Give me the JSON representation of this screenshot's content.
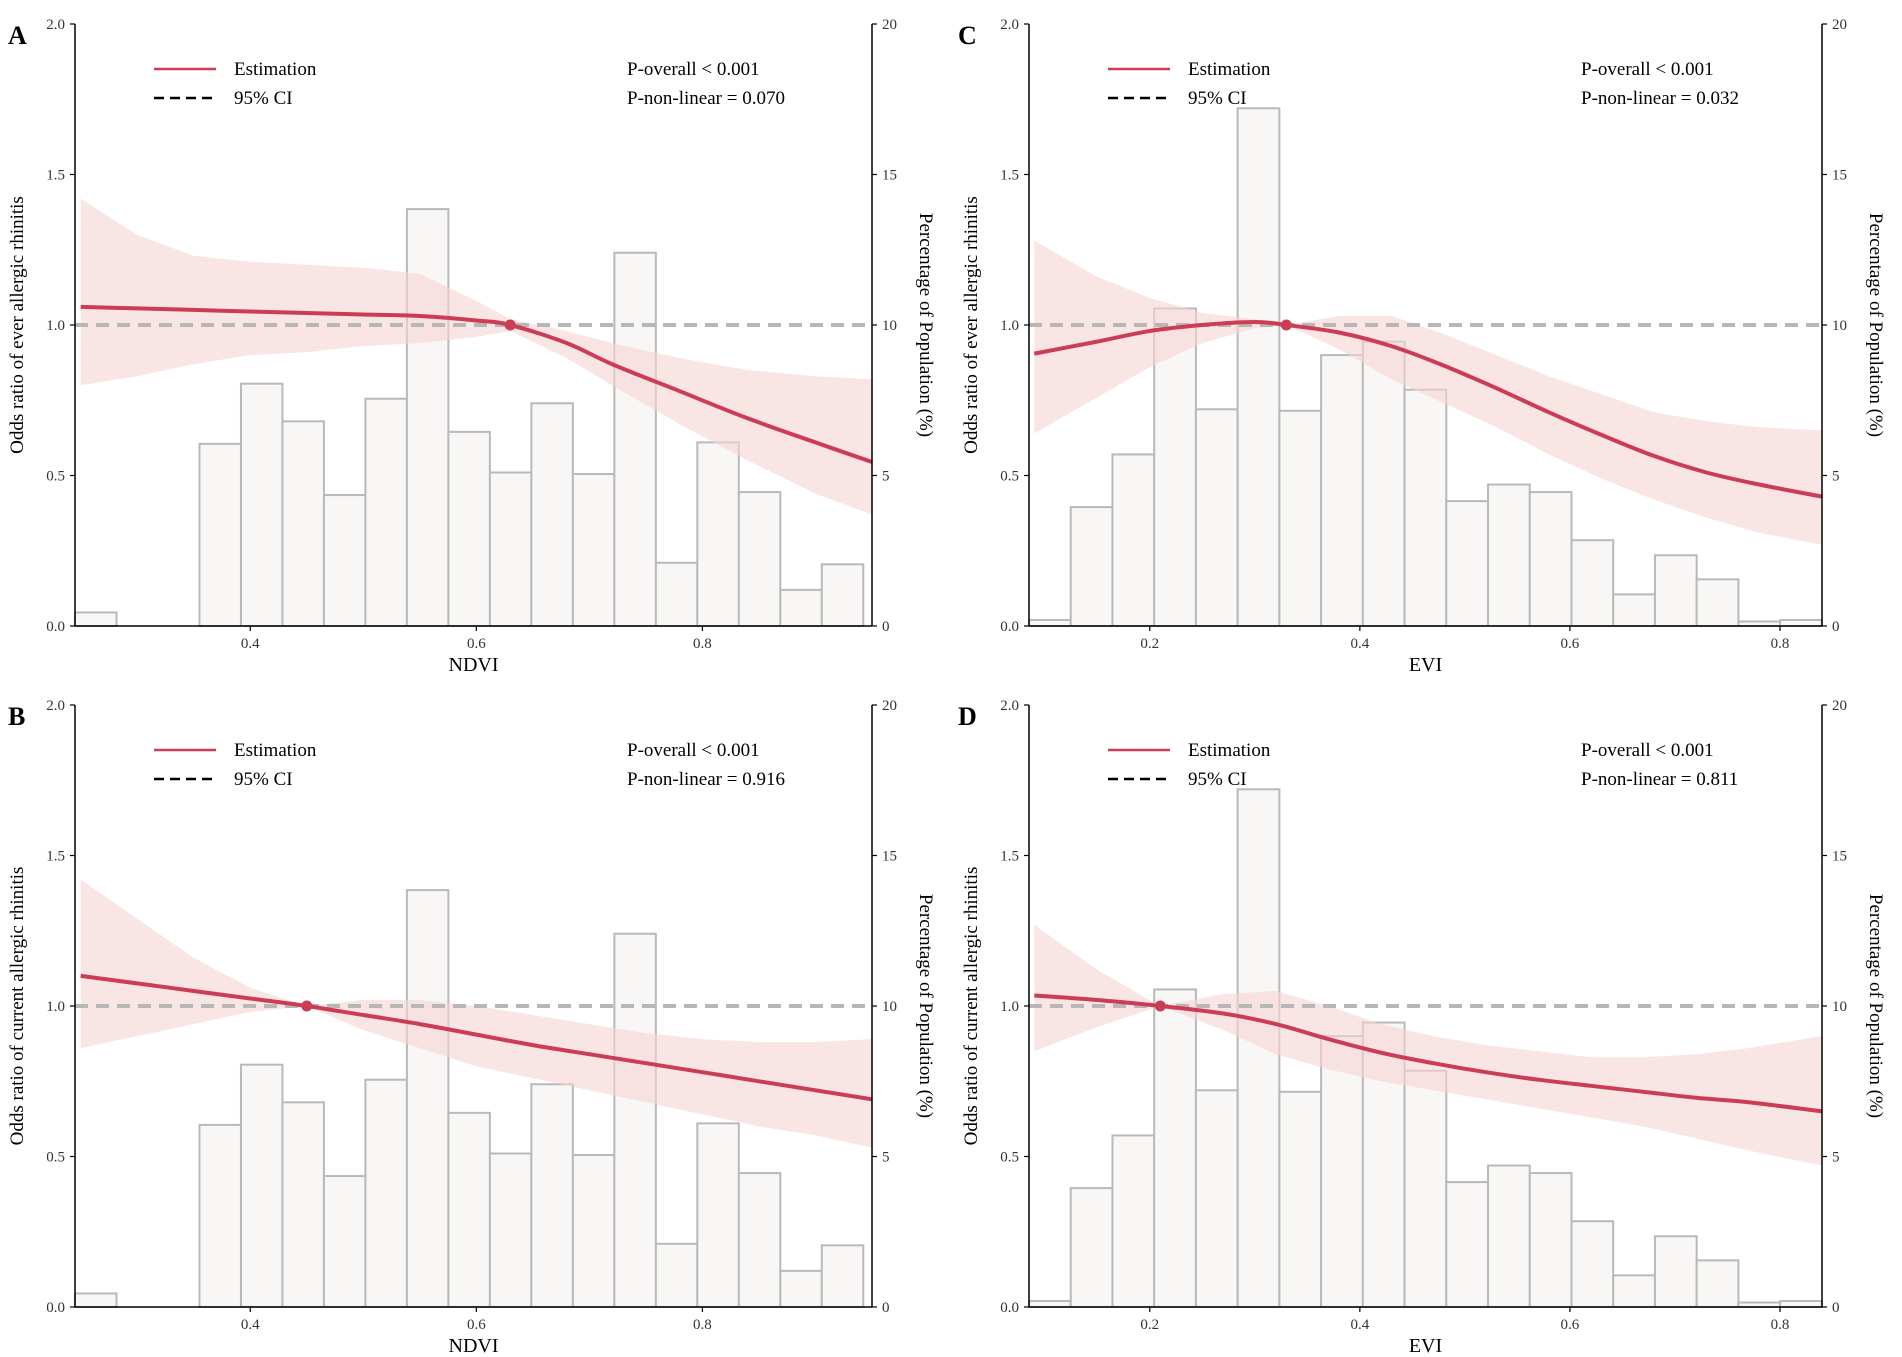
{
  "figure": {
    "legend": {
      "estimation": "Estimation",
      "ci": "95% CI"
    },
    "colors": {
      "curve": "#cc3d55",
      "ci_band": "#f6d3d3",
      "bar_fill": "#f8f7f5",
      "bar_stroke": "#b9b9b9",
      "reference": "#b7b7b7"
    },
    "right_axis_label": "Percentage of Population (%)"
  },
  "chart_data": [
    {
      "type": "line",
      "panel": "A",
      "xlabel": "NDVI",
      "ylabel": "Odds ratio of ever allergic rhinitis",
      "y2label": "Percentage of Population (%)",
      "xlim": [
        0.245,
        0.95
      ],
      "xticks": [
        0.4,
        0.6,
        0.8
      ],
      "xtick_labels": [
        "0.4",
        "0.6",
        "0.8"
      ],
      "ylim": [
        0,
        2
      ],
      "yticks": [
        "0.0",
        "0.5",
        "1.0",
        "1.5",
        "2.0"
      ],
      "y2lim": [
        0,
        20
      ],
      "y2ticks": [
        "0",
        "5",
        "10",
        "15",
        "20"
      ],
      "reference_y": 1.0,
      "p_overall": "P-overall < 0.001",
      "p_nonlinear": "P-non-linear = 0.070",
      "knot": [
        0.63,
        1.0
      ],
      "histogram": {
        "bin_start": 0.245,
        "bin_width": 0.0367,
        "percent": [
          0.45,
          0.0,
          0.0,
          6.05,
          8.05,
          6.8,
          4.35,
          7.55,
          13.85,
          6.45,
          5.1,
          7.4,
          5.05,
          12.4,
          2.1,
          6.1,
          4.45,
          1.2,
          2.05
        ]
      },
      "estimation": {
        "x": [
          0.25,
          0.3,
          0.35,
          0.4,
          0.45,
          0.5,
          0.55,
          0.6,
          0.63,
          0.68,
          0.72,
          0.78,
          0.84,
          0.9,
          0.95
        ],
        "y": [
          1.06,
          1.055,
          1.05,
          1.045,
          1.04,
          1.035,
          1.03,
          1.015,
          1.0,
          0.94,
          0.87,
          0.78,
          0.69,
          0.61,
          0.545
        ]
      },
      "ci_upper": {
        "x": [
          0.25,
          0.3,
          0.35,
          0.4,
          0.45,
          0.5,
          0.55,
          0.6,
          0.63,
          0.68,
          0.72,
          0.78,
          0.84,
          0.9,
          0.95
        ],
        "y": [
          1.42,
          1.3,
          1.23,
          1.21,
          1.2,
          1.19,
          1.17,
          1.08,
          1.02,
          0.98,
          0.94,
          0.89,
          0.85,
          0.83,
          0.82
        ]
      },
      "ci_lower": {
        "x": [
          0.25,
          0.3,
          0.35,
          0.4,
          0.45,
          0.5,
          0.55,
          0.6,
          0.63,
          0.68,
          0.72,
          0.78,
          0.84,
          0.9,
          0.95
        ],
        "y": [
          0.8,
          0.83,
          0.87,
          0.9,
          0.91,
          0.93,
          0.94,
          0.96,
          0.98,
          0.89,
          0.8,
          0.67,
          0.55,
          0.44,
          0.37
        ]
      }
    },
    {
      "type": "line",
      "panel": "B",
      "xlabel": "NDVI",
      "ylabel": "Odds ratio of current allergic rhinitis",
      "y2label": "Percentage of Population (%)",
      "xlim": [
        0.245,
        0.95
      ],
      "xticks": [
        0.4,
        0.6,
        0.8
      ],
      "xtick_labels": [
        "0.4",
        "0.6",
        "0.8"
      ],
      "ylim": [
        0,
        2
      ],
      "yticks": [
        "0.0",
        "0.5",
        "1.0",
        "1.5",
        "2.0"
      ],
      "y2lim": [
        0,
        20
      ],
      "y2ticks": [
        "0",
        "5",
        "10",
        "15",
        "20"
      ],
      "reference_y": 1.0,
      "p_overall": "P-overall < 0.001",
      "p_nonlinear": "P-non-linear = 0.916",
      "knot": [
        0.45,
        1.0
      ],
      "histogram": {
        "bin_start": 0.245,
        "bin_width": 0.0367,
        "percent": [
          0.45,
          0.0,
          0.0,
          6.05,
          8.05,
          6.8,
          4.35,
          7.55,
          13.85,
          6.45,
          5.1,
          7.4,
          5.05,
          12.4,
          2.1,
          6.1,
          4.45,
          1.2,
          2.05
        ]
      },
      "estimation": {
        "x": [
          0.25,
          0.3,
          0.35,
          0.4,
          0.45,
          0.5,
          0.55,
          0.6,
          0.65,
          0.7,
          0.75,
          0.8,
          0.85,
          0.9,
          0.95
        ],
        "y": [
          1.1,
          1.075,
          1.05,
          1.025,
          1.0,
          0.97,
          0.94,
          0.905,
          0.87,
          0.84,
          0.81,
          0.78,
          0.75,
          0.72,
          0.69
        ]
      },
      "ci_upper": {
        "x": [
          0.25,
          0.3,
          0.35,
          0.4,
          0.45,
          0.5,
          0.55,
          0.6,
          0.65,
          0.7,
          0.75,
          0.8,
          0.85,
          0.9,
          0.95
        ],
        "y": [
          1.42,
          1.29,
          1.16,
          1.06,
          1.0,
          1.02,
          1.02,
          1.0,
          0.97,
          0.94,
          0.91,
          0.89,
          0.88,
          0.88,
          0.89
        ]
      },
      "ci_lower": {
        "x": [
          0.25,
          0.3,
          0.35,
          0.4,
          0.45,
          0.5,
          0.55,
          0.6,
          0.65,
          0.7,
          0.75,
          0.8,
          0.85,
          0.9,
          0.95
        ],
        "y": [
          0.86,
          0.9,
          0.94,
          0.98,
          1.0,
          0.92,
          0.86,
          0.8,
          0.76,
          0.72,
          0.68,
          0.64,
          0.6,
          0.57,
          0.53
        ]
      }
    },
    {
      "type": "line",
      "panel": "C",
      "xlabel": "EVI",
      "ylabel": "Odds ratio of ever allergic rhinitis",
      "y2label": "Percentage of Population (%)",
      "xlim": [
        0.085,
        0.84
      ],
      "xticks": [
        0.2,
        0.4,
        0.6,
        0.8
      ],
      "xtick_labels": [
        "0.2",
        "0.4",
        "0.6",
        "0.8"
      ],
      "ylim": [
        0,
        2
      ],
      "yticks": [
        "0.0",
        "0.5",
        "1.0",
        "1.5",
        "2.0"
      ],
      "y2lim": [
        0,
        20
      ],
      "y2ticks": [
        "0",
        "5",
        "10",
        "15",
        "20"
      ],
      "reference_y": 1.0,
      "p_overall": "P-overall < 0.001",
      "p_nonlinear": "P-non-linear = 0.032",
      "knot": [
        0.33,
        1.0
      ],
      "histogram": {
        "bin_start": 0.085,
        "bin_width": 0.03973,
        "percent": [
          0.2,
          3.95,
          5.7,
          10.55,
          7.2,
          17.2,
          7.15,
          9.0,
          9.45,
          7.85,
          4.15,
          4.7,
          4.45,
          2.85,
          1.05,
          2.35,
          1.55,
          0.15,
          0.2
        ]
      },
      "estimation": {
        "x": [
          0.09,
          0.15,
          0.2,
          0.25,
          0.3,
          0.33,
          0.38,
          0.43,
          0.48,
          0.53,
          0.58,
          0.63,
          0.68,
          0.73,
          0.78,
          0.84
        ],
        "y": [
          0.905,
          0.945,
          0.98,
          1.0,
          1.01,
          1.0,
          0.975,
          0.93,
          0.865,
          0.79,
          0.71,
          0.635,
          0.565,
          0.51,
          0.47,
          0.43
        ]
      },
      "ci_upper": {
        "x": [
          0.09,
          0.15,
          0.2,
          0.25,
          0.3,
          0.33,
          0.38,
          0.43,
          0.48,
          0.53,
          0.58,
          0.63,
          0.68,
          0.73,
          0.78,
          0.84
        ],
        "y": [
          1.28,
          1.16,
          1.09,
          1.04,
          1.02,
          1.0,
          1.03,
          1.03,
          0.97,
          0.9,
          0.83,
          0.77,
          0.71,
          0.68,
          0.66,
          0.65
        ]
      },
      "ci_lower": {
        "x": [
          0.09,
          0.15,
          0.2,
          0.25,
          0.3,
          0.33,
          0.38,
          0.43,
          0.48,
          0.53,
          0.58,
          0.63,
          0.68,
          0.73,
          0.78,
          0.84
        ],
        "y": [
          0.64,
          0.76,
          0.86,
          0.94,
          0.99,
          1.0,
          0.92,
          0.82,
          0.74,
          0.66,
          0.57,
          0.49,
          0.42,
          0.36,
          0.31,
          0.27
        ]
      }
    },
    {
      "type": "line",
      "panel": "D",
      "xlabel": "EVI",
      "ylabel": "Odds ratio of current allergic rhinitis",
      "y2label": "Percentage of Population (%)",
      "xlim": [
        0.085,
        0.84
      ],
      "xticks": [
        0.2,
        0.4,
        0.6,
        0.8
      ],
      "xtick_labels": [
        "0.2",
        "0.4",
        "0.6",
        "0.8"
      ],
      "ylim": [
        0,
        2
      ],
      "yticks": [
        "0.0",
        "0.5",
        "1.0",
        "1.5",
        "2.0"
      ],
      "y2lim": [
        0,
        20
      ],
      "y2ticks": [
        "0",
        "5",
        "10",
        "15",
        "20"
      ],
      "reference_y": 1.0,
      "p_overall": "P-overall < 0.001",
      "p_nonlinear": "P-non-linear = 0.811",
      "knot": [
        0.21,
        1.0
      ],
      "histogram": {
        "bin_start": 0.085,
        "bin_width": 0.03973,
        "percent": [
          0.2,
          3.95,
          5.7,
          10.55,
          7.2,
          17.2,
          7.15,
          9.0,
          9.45,
          7.85,
          4.15,
          4.7,
          4.45,
          2.85,
          1.05,
          2.35,
          1.55,
          0.15,
          0.2
        ]
      },
      "estimation": {
        "x": [
          0.09,
          0.15,
          0.21,
          0.27,
          0.32,
          0.37,
          0.42,
          0.47,
          0.52,
          0.57,
          0.62,
          0.67,
          0.72,
          0.77,
          0.84
        ],
        "y": [
          1.035,
          1.02,
          1.0,
          0.975,
          0.94,
          0.89,
          0.845,
          0.81,
          0.78,
          0.755,
          0.735,
          0.715,
          0.695,
          0.68,
          0.65
        ]
      },
      "ci_upper": {
        "x": [
          0.09,
          0.15,
          0.21,
          0.27,
          0.32,
          0.37,
          0.42,
          0.47,
          0.52,
          0.57,
          0.62,
          0.67,
          0.72,
          0.77,
          0.84
        ],
        "y": [
          1.27,
          1.12,
          1.0,
          1.04,
          1.05,
          1.0,
          0.94,
          0.9,
          0.87,
          0.85,
          0.83,
          0.83,
          0.84,
          0.86,
          0.9
        ]
      },
      "ci_lower": {
        "x": [
          0.09,
          0.15,
          0.21,
          0.27,
          0.32,
          0.37,
          0.42,
          0.47,
          0.52,
          0.57,
          0.62,
          0.67,
          0.72,
          0.77,
          0.84
        ],
        "y": [
          0.85,
          0.93,
          1.0,
          0.92,
          0.84,
          0.79,
          0.75,
          0.72,
          0.69,
          0.66,
          0.63,
          0.6,
          0.56,
          0.52,
          0.47
        ]
      }
    }
  ]
}
